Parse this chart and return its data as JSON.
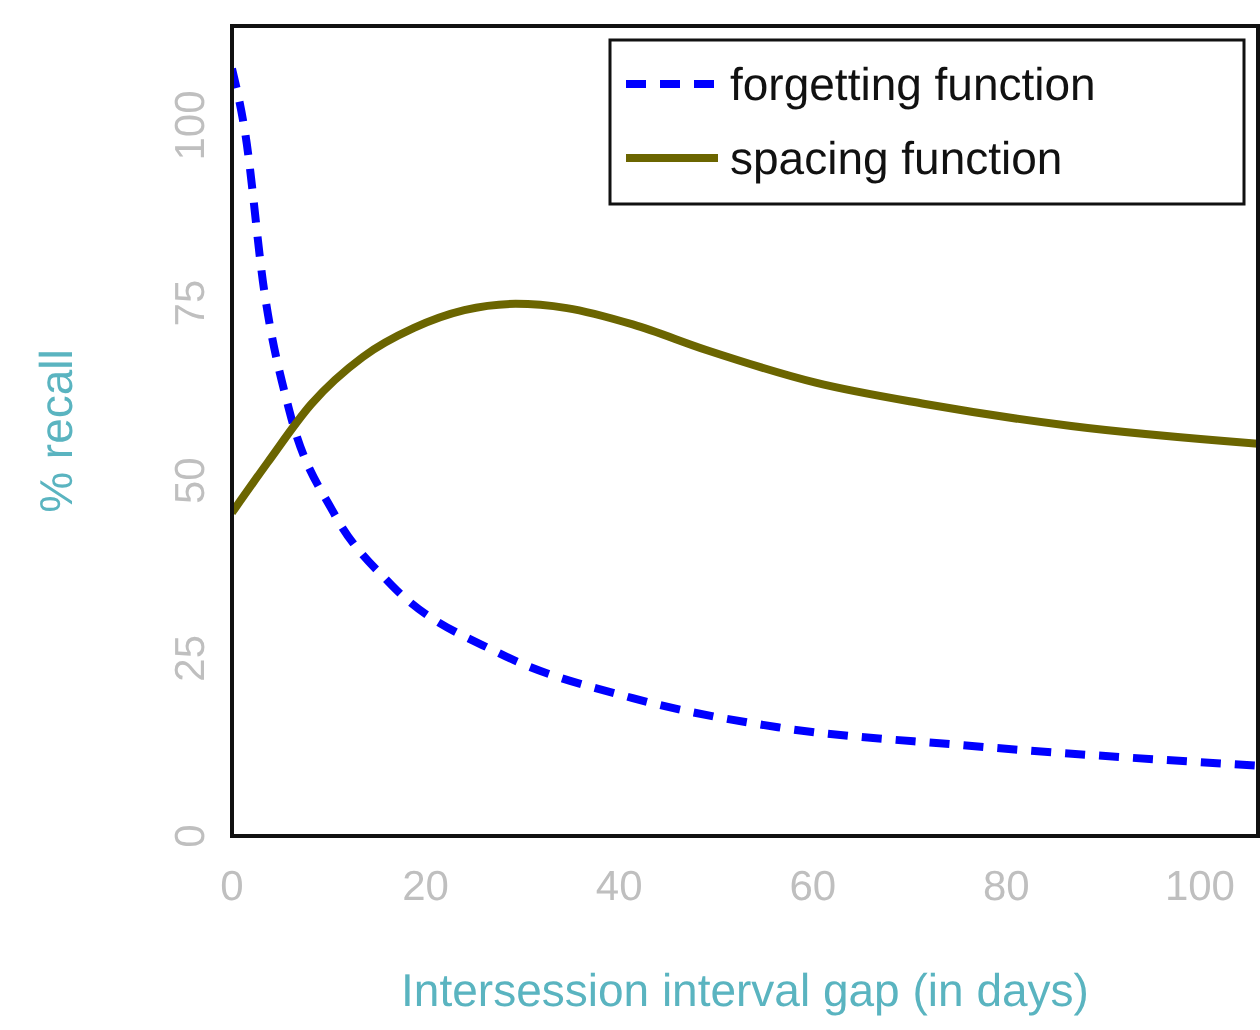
{
  "chart_data": {
    "type": "line",
    "xlabel": "Intersession interval gap (in days)",
    "ylabel": "% recall",
    "xlim": [
      0,
      106
    ],
    "ylim": [
      0,
      114
    ],
    "xticks": [
      0,
      20,
      40,
      60,
      80,
      100
    ],
    "yticks": [
      0,
      25,
      50,
      75,
      100
    ],
    "grid": false,
    "legend": "top right",
    "series": [
      {
        "name": "forgetting function",
        "color": "#0000ff",
        "line_style": "dashed",
        "x": [
          0,
          1.4,
          3.3,
          5.9,
          10.5,
          16.5,
          27.8,
          41.4,
          56.4,
          75.3,
          106
        ],
        "values": [
          108,
          98.6,
          77,
          60,
          45.5,
          35.3,
          25.6,
          19.4,
          15.3,
          12.8,
          9.9
        ]
      },
      {
        "name": "spacing function",
        "color": "#6b6500",
        "line_style": "solid",
        "x": [
          0,
          3.7,
          8.2,
          13.5,
          18.8,
          24,
          29.3,
          34.6,
          41.4,
          49,
          60.3,
          71.6,
          86.7,
          106
        ],
        "values": [
          45.5,
          52.6,
          60.8,
          67.4,
          71.5,
          74,
          74.9,
          74.3,
          72,
          68.4,
          63.8,
          60.8,
          57.7,
          55.2
        ]
      }
    ]
  }
}
